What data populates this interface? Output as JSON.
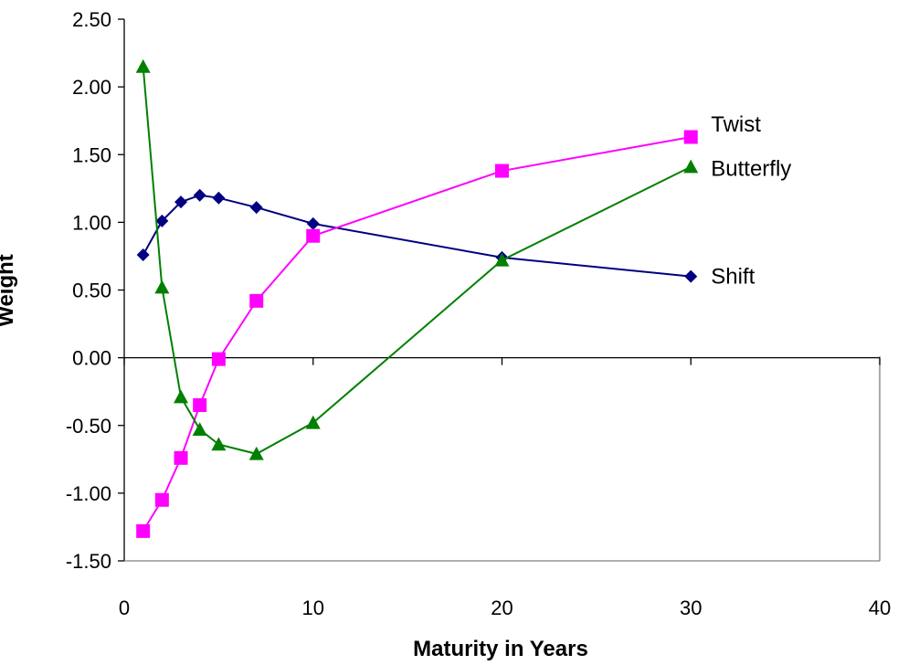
{
  "chart_data": {
    "type": "line",
    "title": "",
    "xlabel": "Maturity in Years",
    "ylabel": "Weight",
    "xlim": [
      0,
      40
    ],
    "ylim": [
      -1.5,
      2.5
    ],
    "x_ticks": [
      "0",
      "10",
      "20",
      "30",
      "40"
    ],
    "x_tick_values": [
      0,
      10,
      20,
      30,
      40
    ],
    "y_ticks": [
      "2.50",
      "2.00",
      "1.50",
      "1.00",
      "0.50",
      "0.00",
      "-0.50",
      "-1.00",
      "-1.50"
    ],
    "y_tick_values": [
      2.5,
      2.0,
      1.5,
      1.0,
      0.5,
      0.0,
      -0.5,
      -1.0,
      -1.5
    ],
    "grid": false,
    "series": [
      {
        "name": "Shift",
        "color": "#000080",
        "marker": "diamond",
        "x": [
          1,
          2,
          3,
          4,
          5,
          7,
          10,
          20,
          30
        ],
        "y": [
          0.76,
          1.01,
          1.15,
          1.2,
          1.18,
          1.11,
          0.99,
          0.74,
          0.6
        ]
      },
      {
        "name": "Twist",
        "color": "#ff00ff",
        "marker": "square",
        "x": [
          1,
          2,
          3,
          4,
          5,
          7,
          10,
          20,
          30
        ],
        "y": [
          -1.28,
          -1.05,
          -0.74,
          -0.35,
          -0.01,
          0.42,
          0.9,
          1.38,
          1.63
        ]
      },
      {
        "name": "Butterfly",
        "color": "#008000",
        "marker": "triangle",
        "x": [
          1,
          2,
          3,
          4,
          5,
          7,
          10,
          20,
          30
        ],
        "y": [
          2.15,
          0.52,
          -0.29,
          -0.53,
          -0.64,
          -0.71,
          -0.48,
          0.72,
          1.41
        ]
      }
    ]
  }
}
